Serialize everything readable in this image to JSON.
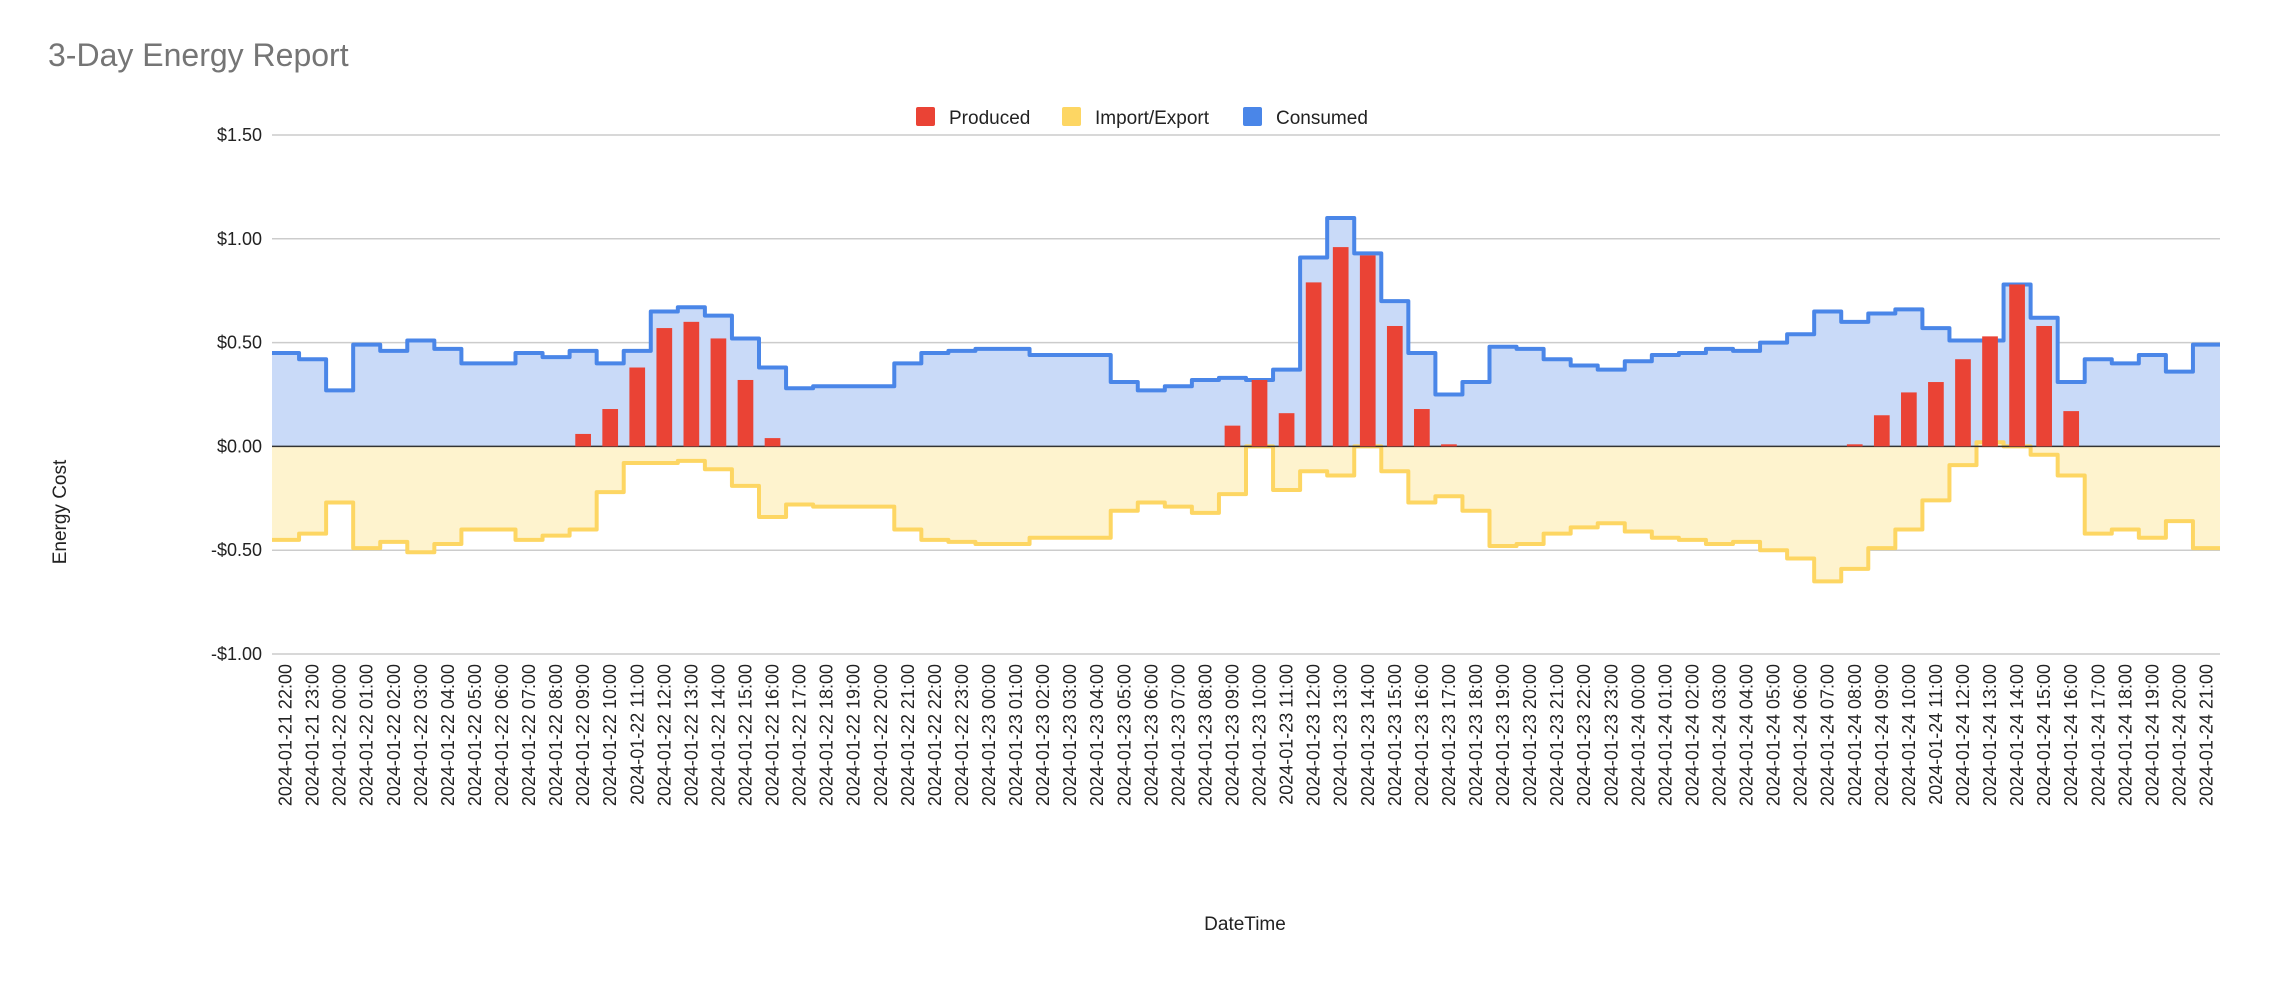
{
  "chart_data": {
    "type": "bar",
    "title": "3-Day Energy Report",
    "xlabel": "DateTime",
    "ylabel": "Energy Cost",
    "ylim": [
      -1.0,
      1.5
    ],
    "y_ticks": [
      {
        "value": 1.5,
        "label": "$1.50"
      },
      {
        "value": 1.0,
        "label": "$1.00"
      },
      {
        "value": 0.5,
        "label": "$0.50"
      },
      {
        "value": 0.0,
        "label": "$0.00"
      },
      {
        "value": -0.5,
        "label": "-$0.50"
      },
      {
        "value": -1.0,
        "label": "-$1.00"
      }
    ],
    "grid": true,
    "legend_position": "top",
    "categories": [
      "2024-01-21 22:00",
      "2024-01-21 23:00",
      "2024-01-22 00:00",
      "2024-01-22 01:00",
      "2024-01-22 02:00",
      "2024-01-22 03:00",
      "2024-01-22 04:00",
      "2024-01-22 05:00",
      "2024-01-22 06:00",
      "2024-01-22 07:00",
      "2024-01-22 08:00",
      "2024-01-22 09:00",
      "2024-01-22 10:00",
      "2024-01-22 11:00",
      "2024-01-22 12:00",
      "2024-01-22 13:00",
      "2024-01-22 14:00",
      "2024-01-22 15:00",
      "2024-01-22 16:00",
      "2024-01-22 17:00",
      "2024-01-22 18:00",
      "2024-01-22 19:00",
      "2024-01-22 20:00",
      "2024-01-22 21:00",
      "2024-01-22 22:00",
      "2024-01-22 23:00",
      "2024-01-23 00:00",
      "2024-01-23 01:00",
      "2024-01-23 02:00",
      "2024-01-23 03:00",
      "2024-01-23 04:00",
      "2024-01-23 05:00",
      "2024-01-23 06:00",
      "2024-01-23 07:00",
      "2024-01-23 08:00",
      "2024-01-23 09:00",
      "2024-01-23 10:00",
      "2024-01-23 11:00",
      "2024-01-23 12:00",
      "2024-01-23 13:00",
      "2024-01-23 14:00",
      "2024-01-23 15:00",
      "2024-01-23 16:00",
      "2024-01-23 17:00",
      "2024-01-23 18:00",
      "2024-01-23 19:00",
      "2024-01-23 20:00",
      "2024-01-23 21:00",
      "2024-01-23 22:00",
      "2024-01-23 23:00",
      "2024-01-24 00:00",
      "2024-01-24 01:00",
      "2024-01-24 02:00",
      "2024-01-24 03:00",
      "2024-01-24 04:00",
      "2024-01-24 05:00",
      "2024-01-24 06:00",
      "2024-01-24 07:00",
      "2024-01-24 08:00",
      "2024-01-24 09:00",
      "2024-01-24 10:00",
      "2024-01-24 11:00",
      "2024-01-24 12:00",
      "2024-01-24 13:00",
      "2024-01-24 14:00",
      "2024-01-24 15:00",
      "2024-01-24 16:00",
      "2024-01-24 17:00",
      "2024-01-24 18:00",
      "2024-01-24 19:00",
      "2024-01-24 20:00",
      "2024-01-24 21:00"
    ],
    "series": [
      {
        "name": "Produced",
        "type": "bar",
        "color": "#EA4335",
        "values": [
          0,
          0,
          0,
          0,
          0,
          0,
          0,
          0,
          0,
          0,
          0,
          0.06,
          0.18,
          0.38,
          0.57,
          0.6,
          0.52,
          0.32,
          0.04,
          0,
          0,
          0,
          0,
          0,
          0,
          0,
          0,
          0,
          0,
          0,
          0,
          0,
          0,
          0,
          0,
          0.1,
          0.32,
          0.16,
          0.79,
          0.96,
          0.92,
          0.58,
          0.18,
          0.01,
          0,
          0,
          0,
          0,
          0,
          0,
          0,
          0,
          0,
          0,
          0,
          0,
          0,
          0,
          0.01,
          0.15,
          0.26,
          0.31,
          0.42,
          0.53,
          0.78,
          0.58,
          0.17,
          0,
          0,
          0,
          0,
          0
        ]
      },
      {
        "name": "Import/Export",
        "type": "stepped-area",
        "color": "#FDD663",
        "fill": "#FEF3CE",
        "values": [
          -0.45,
          -0.42,
          -0.27,
          -0.49,
          -0.46,
          -0.51,
          -0.47,
          -0.4,
          -0.4,
          -0.45,
          -0.43,
          -0.4,
          -0.22,
          -0.08,
          -0.08,
          -0.07,
          -0.11,
          -0.19,
          -0.34,
          -0.28,
          -0.29,
          -0.29,
          -0.29,
          -0.4,
          -0.45,
          -0.46,
          -0.47,
          -0.47,
          -0.44,
          -0.44,
          -0.44,
          -0.31,
          -0.27,
          -0.29,
          -0.32,
          -0.23,
          0.0,
          -0.21,
          -0.12,
          -0.14,
          0.0,
          -0.12,
          -0.27,
          -0.24,
          -0.31,
          -0.48,
          -0.47,
          -0.42,
          -0.39,
          -0.37,
          -0.41,
          -0.44,
          -0.45,
          -0.47,
          -0.46,
          -0.5,
          -0.54,
          -0.65,
          -0.59,
          -0.49,
          -0.4,
          -0.26,
          -0.09,
          0.02,
          0.0,
          -0.04,
          -0.14,
          -0.42,
          -0.4,
          -0.44,
          -0.36,
          -0.49
        ]
      },
      {
        "name": "Consumed",
        "type": "stepped-area",
        "color": "#4A86E8",
        "fill": "#C9DAF8",
        "values": [
          0.45,
          0.42,
          0.27,
          0.49,
          0.46,
          0.51,
          0.47,
          0.4,
          0.4,
          0.45,
          0.43,
          0.46,
          0.4,
          0.46,
          0.65,
          0.67,
          0.63,
          0.52,
          0.38,
          0.28,
          0.29,
          0.29,
          0.29,
          0.4,
          0.45,
          0.46,
          0.47,
          0.47,
          0.44,
          0.44,
          0.44,
          0.31,
          0.27,
          0.29,
          0.32,
          0.33,
          0.32,
          0.37,
          0.91,
          1.1,
          0.93,
          0.7,
          0.45,
          0.25,
          0.31,
          0.48,
          0.47,
          0.42,
          0.39,
          0.37,
          0.41,
          0.44,
          0.45,
          0.47,
          0.46,
          0.5,
          0.54,
          0.65,
          0.6,
          0.64,
          0.66,
          0.57,
          0.51,
          0.51,
          0.78,
          0.62,
          0.31,
          0.42,
          0.4,
          0.44,
          0.36,
          0.49
        ]
      }
    ]
  }
}
